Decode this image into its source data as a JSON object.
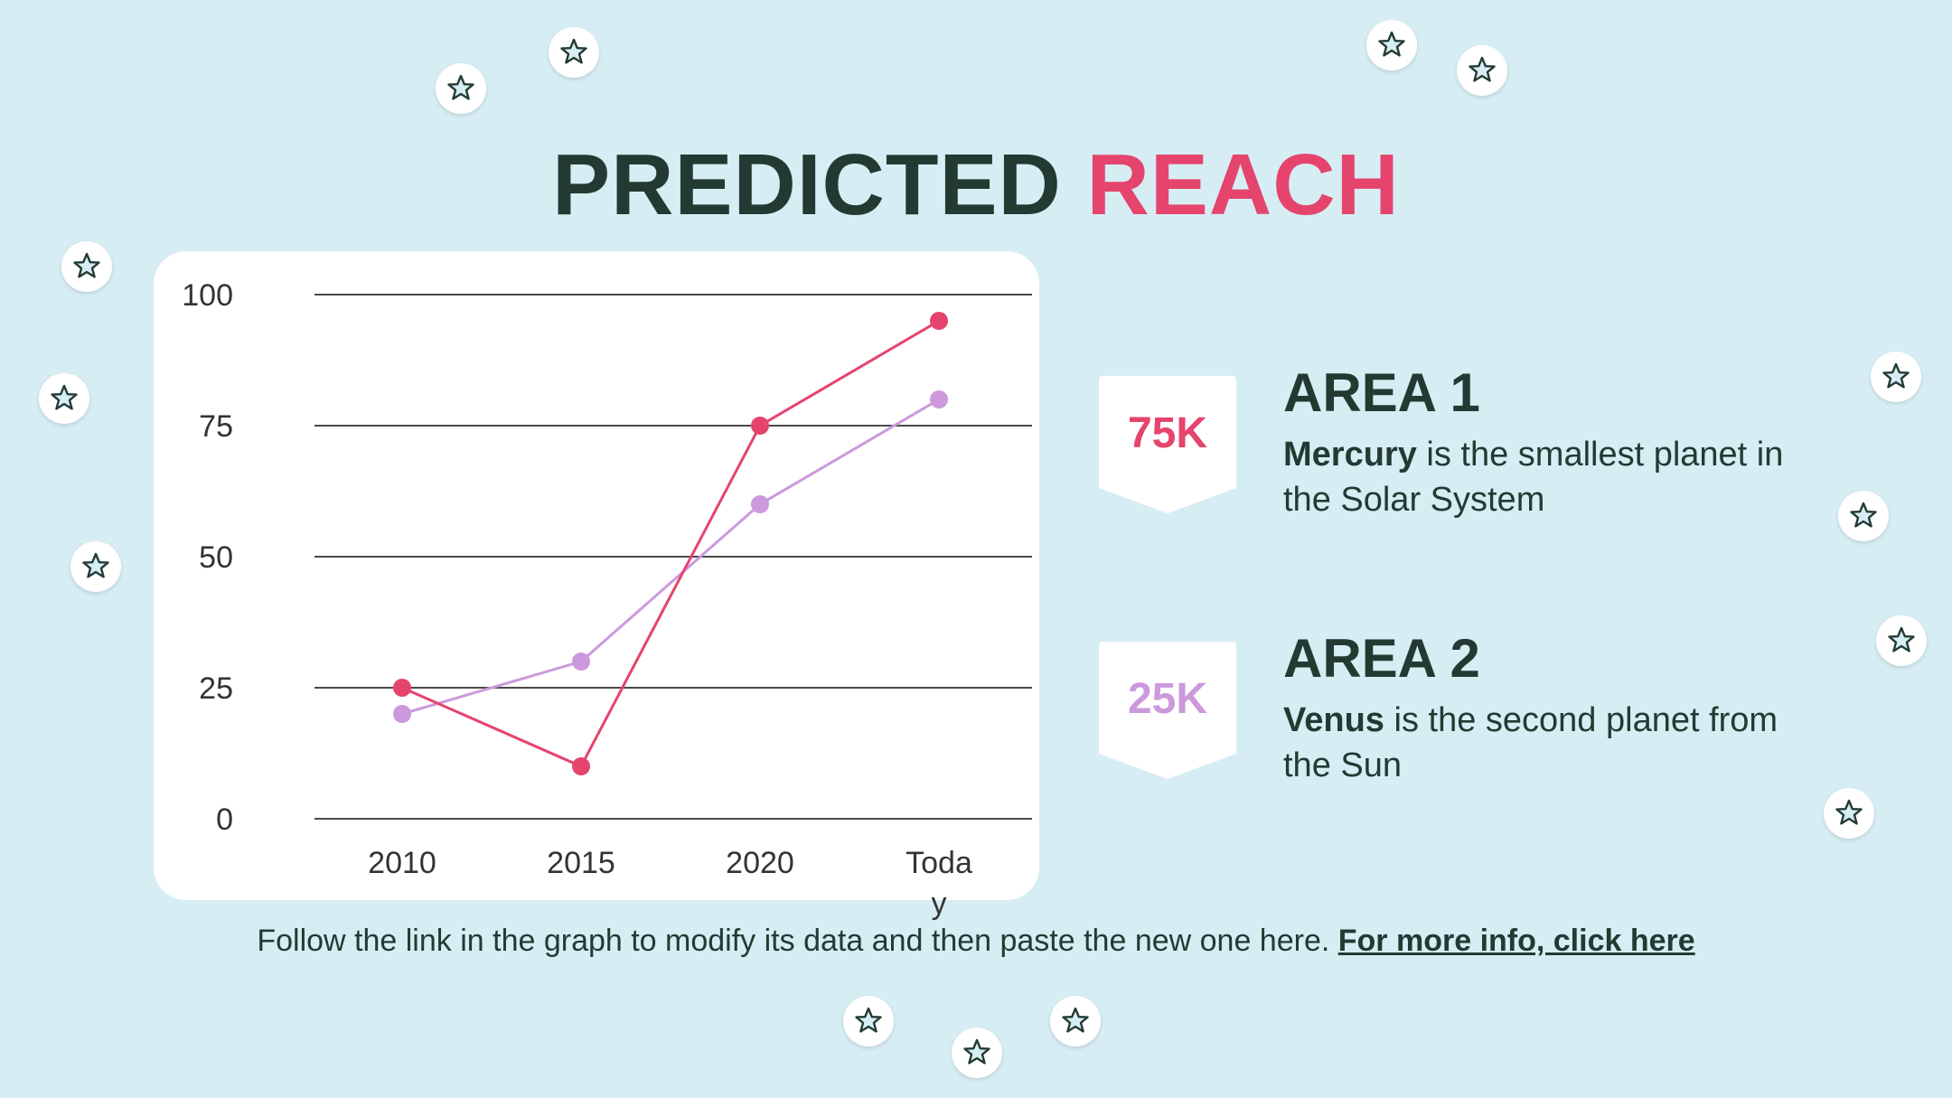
{
  "title": {
    "part1": "PREDICTED",
    "part2": "REACH"
  },
  "colors": {
    "accent_red": "#e5446d",
    "accent_purple": "#cc99dd",
    "text_dark": "#233a33",
    "background": "#d6edf3"
  },
  "chart_data": {
    "type": "line",
    "categories": [
      "2010",
      "2015",
      "2020",
      "Today"
    ],
    "category_labels": [
      [
        "2010"
      ],
      [
        "2015"
      ],
      [
        "2020"
      ],
      [
        "Toda",
        "y"
      ]
    ],
    "series": [
      {
        "values": [
          25,
          10,
          75,
          95
        ],
        "color": "#e5446d"
      },
      {
        "values": [
          20,
          30,
          60,
          80
        ],
        "color": "#cc99dd"
      }
    ],
    "yticks": [
      "0",
      "25",
      "50",
      "75",
      "100"
    ],
    "ylim": [
      0,
      100
    ],
    "grid": true,
    "legend": "none"
  },
  "areas": [
    {
      "badge_value": "75K",
      "badge_color": "#e5446d",
      "title": "AREA 1",
      "desc_bold": "Mercury",
      "desc_rest": " is the smallest planet in the Solar System"
    },
    {
      "badge_value": "25K",
      "badge_color": "#cc99dd",
      "title": "AREA 2",
      "desc_bold": "Venus",
      "desc_rest": " is the second planet from the Sun"
    }
  ],
  "footer": {
    "text": "Follow the link in the graph to modify its data and then paste the new one here. ",
    "link": "For more info, click here"
  },
  "decorations": {
    "icon": "star-icon"
  }
}
